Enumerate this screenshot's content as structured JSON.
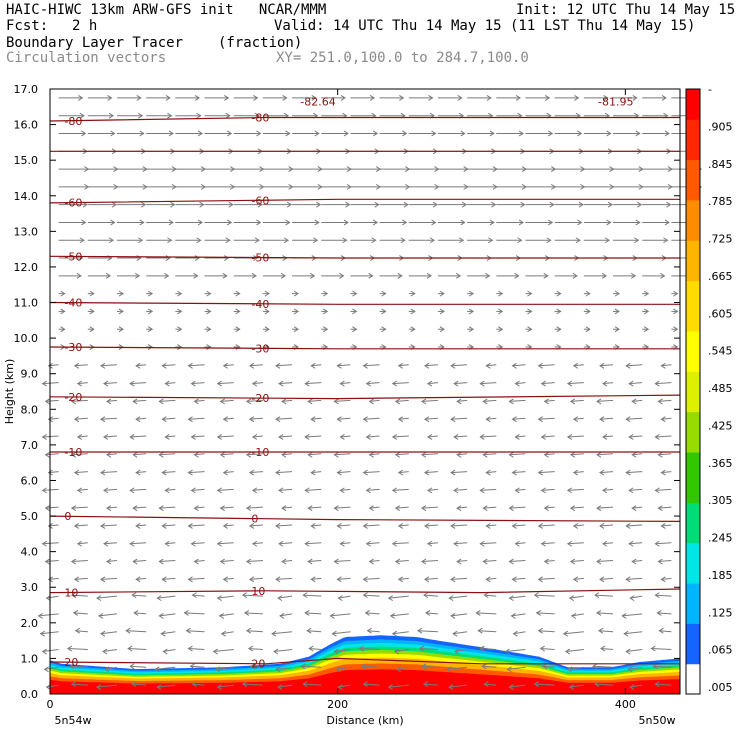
{
  "header": {
    "line1_left": "HAIC-HIWC 13km ARW-GFS init   NCAR/MMM",
    "line1_right": "Init: 12 UTC Thu 14 May 15",
    "fcst_label": "Fcst:",
    "fcst_value": "2 h",
    "valid": "Valid: 14 UTC Thu 14 May 15 (11 LST Thu 14 May 15)",
    "field_name": "Boundary Layer Tracer",
    "field_units": "(fraction)",
    "vectors_label": "Circulation vectors",
    "xsection": "XY= 251.0,100.0 to 284.7,100.0"
  },
  "colors": {
    "contour": "#8b1010",
    "vector": "#7a7a7a",
    "scale": [
      "#ffffff",
      "#1464ff",
      "#00b4ff",
      "#00e6e6",
      "#00dc78",
      "#32c800",
      "#96dc00",
      "#dcf000",
      "#ffff00",
      "#ffdc00",
      "#ffb400",
      "#ff8c00",
      "#ff5a00",
      "#ff2800",
      "#ff0000"
    ]
  },
  "chart_data": {
    "type": "heatmap",
    "xlabel": "Distance (km)",
    "ylabel": "Height (km)",
    "xlim": [
      0,
      438
    ],
    "ylim": [
      0,
      17
    ],
    "xticks": [
      {
        "value": 0,
        "label": "0"
      },
      {
        "value": 200,
        "label": "200"
      },
      {
        "value": 400,
        "label": "400"
      }
    ],
    "yticks": [
      {
        "value": 0,
        "label": "0.0"
      },
      {
        "value": 1,
        "label": "1.0"
      },
      {
        "value": 2,
        "label": "2.0"
      },
      {
        "value": 3,
        "label": "3.0"
      },
      {
        "value": 4,
        "label": "4.0"
      },
      {
        "value": 5,
        "label": "5.0"
      },
      {
        "value": 6,
        "label": "6.0"
      },
      {
        "value": 7,
        "label": "7.0"
      },
      {
        "value": 8,
        "label": "8.0"
      },
      {
        "value": 9,
        "label": "9.0"
      },
      {
        "value": 10,
        "label": "10.0"
      },
      {
        "value": 11,
        "label": "11.0"
      },
      {
        "value": 12,
        "label": "12.0"
      },
      {
        "value": 13,
        "label": "13.0"
      },
      {
        "value": 14,
        "label": "14.0"
      },
      {
        "value": 15,
        "label": "15.0"
      },
      {
        "value": 16,
        "label": "16.0"
      },
      {
        "value": 17,
        "label": "17.0"
      }
    ],
    "x_endpoints": {
      "left": "5n54w",
      "right": "5n50w"
    },
    "colorbar_labels": [
      ".005",
      ".065",
      ".125",
      ".185",
      ".245",
      ".305",
      ".365",
      ".425",
      ".485",
      ".545",
      ".605",
      ".665",
      ".725",
      ".785",
      ".845",
      ".905",
      "-"
    ],
    "tracer_top_km": [
      [
        0,
        0.95
      ],
      [
        8,
        0.85
      ],
      [
        60,
        0.7
      ],
      [
        120,
        0.75
      ],
      [
        160,
        0.85
      ],
      [
        180,
        1.05
      ],
      [
        195,
        1.4
      ],
      [
        205,
        1.6
      ],
      [
        230,
        1.65
      ],
      [
        255,
        1.6
      ],
      [
        270,
        1.5
      ],
      [
        310,
        1.25
      ],
      [
        340,
        1.05
      ],
      [
        360,
        0.75
      ],
      [
        390,
        0.75
      ],
      [
        410,
        0.9
      ],
      [
        438,
        1.0
      ]
    ],
    "temperature_contours": [
      {
        "value": -80,
        "label": "-80",
        "pts": [
          [
            0,
            16.1
          ],
          [
            150,
            16.2
          ],
          [
            300,
            16.2
          ],
          [
            438,
            16.2
          ]
        ]
      },
      {
        "value": -70,
        "label": "",
        "pts": [
          [
            0,
            15.25
          ],
          [
            200,
            15.25
          ],
          [
            438,
            15.25
          ]
        ]
      },
      {
        "value": -60,
        "label": "-60",
        "pts": [
          [
            0,
            13.8
          ],
          [
            200,
            13.9
          ],
          [
            438,
            13.9
          ]
        ]
      },
      {
        "value": -50,
        "label": "-50",
        "pts": [
          [
            0,
            12.3
          ],
          [
            200,
            12.25
          ],
          [
            438,
            12.25
          ]
        ]
      },
      {
        "value": -40,
        "label": "-40",
        "pts": [
          [
            0,
            11.0
          ],
          [
            200,
            10.95
          ],
          [
            438,
            10.95
          ]
        ]
      },
      {
        "value": -30,
        "label": "-30",
        "pts": [
          [
            0,
            9.75
          ],
          [
            200,
            9.7
          ],
          [
            438,
            9.7
          ]
        ]
      },
      {
        "value": -20,
        "label": "-20",
        "pts": [
          [
            0,
            8.35
          ],
          [
            200,
            8.3
          ],
          [
            438,
            8.4
          ]
        ]
      },
      {
        "value": -10,
        "label": "-10",
        "pts": [
          [
            0,
            6.8
          ],
          [
            200,
            6.8
          ],
          [
            438,
            6.8
          ]
        ]
      },
      {
        "value": 0,
        "label": "0",
        "pts": [
          [
            0,
            5.0
          ],
          [
            200,
            4.9
          ],
          [
            438,
            4.85
          ]
        ]
      },
      {
        "value": 10,
        "label": "10",
        "pts": [
          [
            0,
            2.85
          ],
          [
            150,
            2.9
          ],
          [
            300,
            2.85
          ],
          [
            438,
            2.95
          ]
        ]
      },
      {
        "value": 20,
        "label": "20",
        "pts": [
          [
            0,
            0.9
          ],
          [
            150,
            0.85
          ],
          [
            200,
            1.0
          ],
          [
            300,
            0.85
          ],
          [
            438,
            0.85
          ]
        ]
      }
    ],
    "extremes": [
      {
        "label": "-82.64",
        "x": 174,
        "y": 16.65
      },
      {
        "label": "-81.95",
        "x": 381,
        "y": 16.65
      }
    ],
    "wind_regime": [
      {
        "from_km": 11.5,
        "to_km": 17,
        "direction": "westerly",
        "strength": "strong"
      },
      {
        "from_km": 9.5,
        "to_km": 11.5,
        "direction": "westerly",
        "strength": "weak"
      },
      {
        "from_km": 0,
        "to_km": 9.5,
        "direction": "easterly",
        "strength": "moderate"
      }
    ]
  }
}
